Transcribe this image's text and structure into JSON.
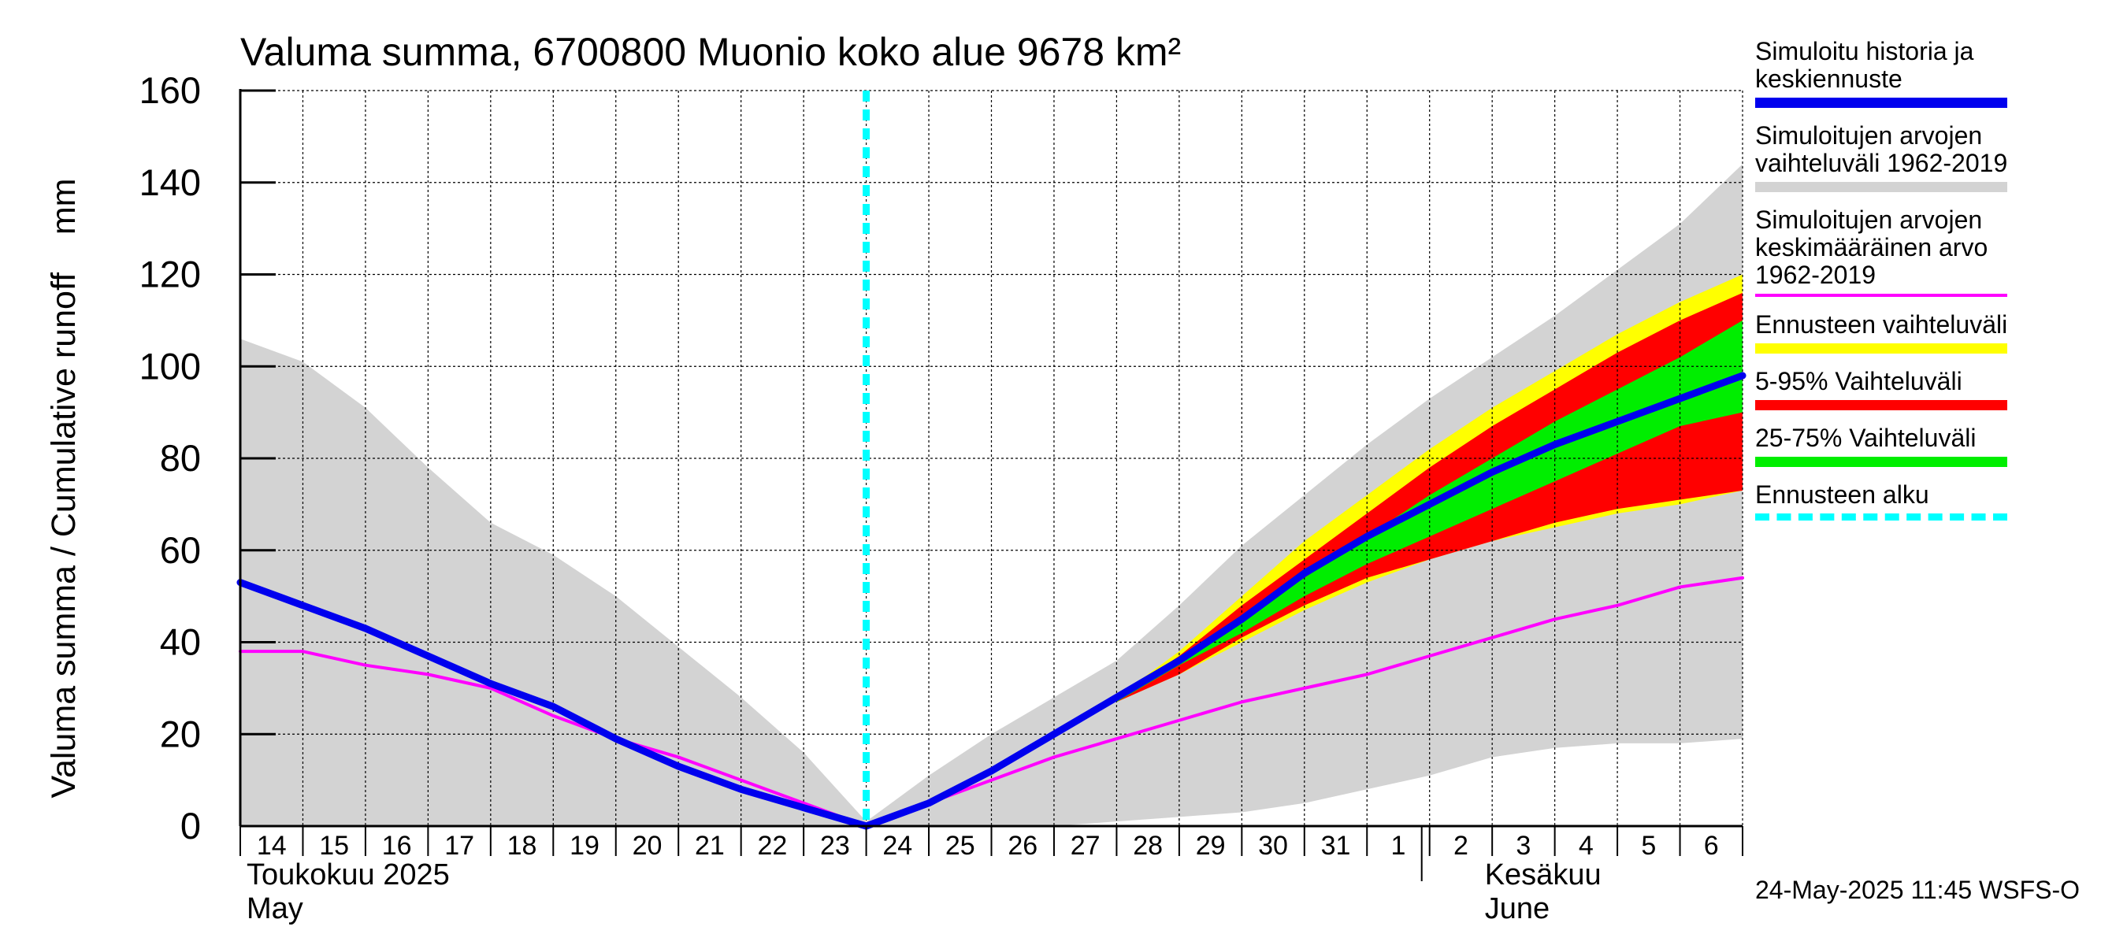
{
  "chart_data": {
    "type": "area",
    "title": "Valuma summa, 6700800 Muonio koko alue 9678 km²",
    "ylabel": "Valuma summa / Cumulative runoff    mm",
    "ylim": [
      0,
      160
    ],
    "yticks": [
      0,
      20,
      40,
      60,
      80,
      100,
      120,
      140,
      160
    ],
    "x_tick_labels": [
      "14",
      "15",
      "16",
      "17",
      "18",
      "19",
      "20",
      "21",
      "22",
      "23",
      "24",
      "25",
      "26",
      "27",
      "28",
      "29",
      "30",
      "31",
      "1",
      "2",
      "3",
      "4",
      "5",
      "6"
    ],
    "month_labels": [
      {
        "line1": "Toukokuu  2025",
        "line2": "May",
        "start_day": 0
      },
      {
        "line1": "Kesäkuu",
        "line2": "June",
        "start_day": 19
      }
    ],
    "forecast_start_day": 10,
    "series": [
      {
        "name": "hist_range_upper",
        "x": [
          0,
          1,
          2,
          3,
          4,
          5,
          6,
          7,
          8,
          9,
          10,
          11,
          12,
          13,
          14,
          15,
          16,
          17,
          18,
          19,
          20,
          21,
          22,
          23,
          24
        ],
        "values": [
          106,
          101,
          91,
          78,
          66,
          59,
          50,
          39,
          28,
          16,
          1,
          11,
          20,
          28,
          36,
          48,
          61,
          72,
          83,
          93,
          102,
          111,
          121,
          131,
          144
        ]
      },
      {
        "name": "hist_range_lower",
        "x": [
          0,
          1,
          2,
          3,
          4,
          5,
          6,
          7,
          8,
          9,
          10,
          11,
          12,
          13,
          14,
          15,
          16,
          17,
          18,
          19,
          20,
          21,
          22,
          23,
          24
        ],
        "values": [
          0,
          0,
          0,
          0,
          0,
          0,
          0,
          0,
          0,
          0,
          0,
          0,
          0,
          0,
          1,
          2,
          3,
          5,
          8,
          11,
          15,
          17,
          18,
          18,
          19
        ]
      },
      {
        "name": "forecast_range",
        "x": [
          14,
          15,
          16,
          17,
          18,
          19,
          20,
          21,
          22,
          23,
          24
        ],
        "upper": [
          28,
          38,
          50,
          62,
          72,
          82,
          91,
          99,
          107,
          114,
          120
        ],
        "lower": [
          27,
          33,
          40,
          47,
          53,
          58,
          62,
          65,
          68,
          70,
          73
        ]
      },
      {
        "name": "p5_95",
        "x": [
          14,
          15,
          16,
          17,
          18,
          19,
          20,
          21,
          22,
          23,
          24
        ],
        "upper": [
          28,
          37,
          48,
          58,
          68,
          78,
          87,
          95,
          103,
          110,
          116
        ],
        "lower": [
          27,
          33,
          41,
          48,
          54,
          58,
          62,
          66,
          69,
          71,
          73
        ]
      },
      {
        "name": "p25_75",
        "x": [
          14,
          15,
          16,
          17,
          18,
          19,
          20,
          21,
          22,
          23,
          24
        ],
        "upper": [
          28,
          36,
          45,
          54,
          63,
          72,
          80,
          88,
          95,
          102,
          110
        ],
        "lower": [
          27,
          35,
          42,
          50,
          57,
          63,
          69,
          75,
          81,
          87,
          90
        ]
      },
      {
        "name": "Simuloitu historia ja keskiennuste",
        "x": [
          0,
          1,
          2,
          3,
          4,
          5,
          6,
          7,
          8,
          9,
          10,
          11,
          12,
          13,
          14,
          15,
          16,
          17,
          18,
          19,
          20,
          21,
          22,
          23,
          24
        ],
        "values": [
          53,
          48,
          43,
          37,
          31,
          26,
          19,
          13,
          8,
          4,
          0,
          5,
          12,
          20,
          28,
          36,
          45,
          55,
          63,
          70,
          77,
          83,
          88,
          93,
          98
        ]
      },
      {
        "name": "Simuloitujen arvojen keskimääräinen arvo 1962-2019",
        "x": [
          0,
          1,
          2,
          3,
          4,
          5,
          6,
          7,
          8,
          9,
          10,
          11,
          12,
          13,
          14,
          15,
          16,
          17,
          18,
          19,
          20,
          21,
          22,
          23,
          24
        ],
        "values": [
          38,
          38,
          35,
          33,
          30,
          24,
          19,
          15,
          10,
          5,
          0,
          5,
          10,
          15,
          19,
          23,
          27,
          30,
          33,
          37,
          41,
          45,
          48,
          52,
          54
        ]
      }
    ],
    "colors": {
      "hist_range": "#d3d3d3",
      "forecast_range": "#ffff00",
      "p5_95": "#ff0000",
      "p25_75": "#00ee00",
      "median": "#0000ee",
      "mean": "#ff00ff",
      "forecast_start": "#00ffff"
    }
  },
  "legend": {
    "items": [
      {
        "label": "Simuloitu historia ja\nkeskiennuste",
        "color": "#0000ee",
        "style": "solid"
      },
      {
        "label": "Simuloitujen arvojen\nvaihteluväli 1962-2019",
        "color": "#d3d3d3",
        "style": "solid"
      },
      {
        "label": "Simuloitujen arvojen\nkeskimääräinen arvo\n   1962-2019",
        "color": "#ff00ff",
        "style": "thin"
      },
      {
        "label": "Ennusteen vaihteluväli",
        "color": "#ffff00",
        "style": "solid"
      },
      {
        "label": "5-95% Vaihteluväli",
        "color": "#ff0000",
        "style": "solid"
      },
      {
        "label": "25-75% Vaihteluväli",
        "color": "#00ee00",
        "style": "solid"
      },
      {
        "label": "Ennusteen alku",
        "color": "#00ffff",
        "style": "dashed"
      }
    ]
  },
  "footer": {
    "timestamp": "24-May-2025 11:45 WSFS-O"
  }
}
